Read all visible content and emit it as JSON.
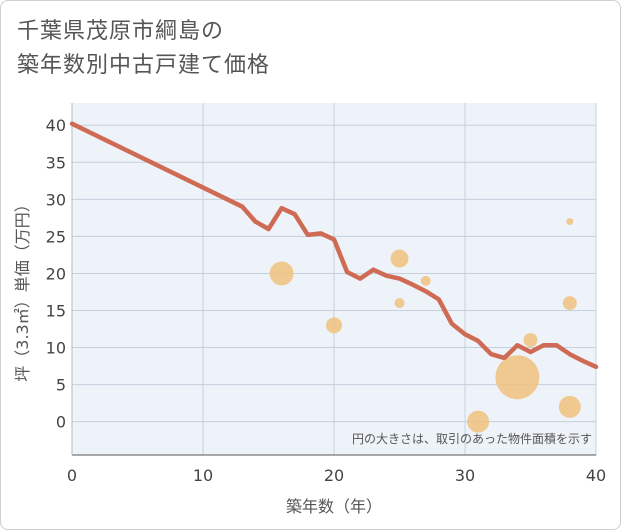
{
  "title_line1": "千葉県茂原市綱島の",
  "title_line2": "築年数別中古戸建て価格",
  "chart_data": {
    "type": "scatter+line",
    "xlabel": "築年数（年）",
    "ylabel": "坪（3.3㎡）単価（万円）",
    "xlim": [
      0,
      40
    ],
    "ylim": [
      -4.5,
      43
    ],
    "xticks": [
      0,
      10,
      20,
      30,
      40
    ],
    "yticks": [
      0,
      5,
      10,
      15,
      20,
      25,
      30,
      35,
      40
    ],
    "note": "円の大きさは、取引のあった物件面積を示す",
    "line": {
      "x": [
        0,
        13,
        14,
        15,
        16,
        17,
        18,
        19,
        20,
        21,
        22,
        23,
        24,
        25,
        26,
        27,
        28,
        29,
        30,
        31,
        32,
        33,
        34,
        35,
        36,
        37,
        38,
        39,
        40
      ],
      "y": [
        40.2,
        29,
        27,
        26,
        28.8,
        28,
        25.2,
        25.4,
        24.6,
        20.2,
        19.3,
        20.5,
        19.7,
        19.3,
        18.5,
        17.6,
        16.5,
        13.2,
        11.8,
        10.9,
        9.1,
        8.6,
        10.3,
        9.4,
        10.3,
        10.3,
        9.1,
        8.2,
        7.4
      ]
    },
    "points": [
      {
        "x": 16,
        "y": 20,
        "size": 12
      },
      {
        "x": 20,
        "y": 13,
        "size": 8
      },
      {
        "x": 25,
        "y": 22,
        "size": 9
      },
      {
        "x": 25,
        "y": 16,
        "size": 5
      },
      {
        "x": 27,
        "y": 19,
        "size": 5
      },
      {
        "x": 31,
        "y": 0,
        "size": 11
      },
      {
        "x": 34,
        "y": 6,
        "size": 22
      },
      {
        "x": 35,
        "y": 11,
        "size": 7
      },
      {
        "x": 38,
        "y": 27,
        "size": 3.5
      },
      {
        "x": 38,
        "y": 16,
        "size": 7
      },
      {
        "x": 38,
        "y": 2,
        "size": 11
      }
    ],
    "colors": {
      "line": "#cf6b54",
      "points": "#f0c07a",
      "plot_bg": "#eef3f9",
      "grid": "#c5d0dd"
    }
  }
}
